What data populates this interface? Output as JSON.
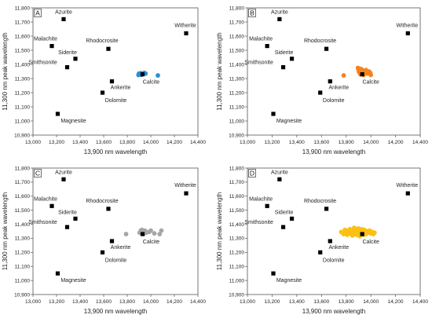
{
  "chart_data": [
    {
      "type": "scatter",
      "panel_label": "A",
      "xlabel": "13,900 nm wavelength",
      "ylabel": "11,300 nm peak wavelength",
      "xlim": [
        13000,
        14400
      ],
      "ylim": [
        10900,
        11800
      ],
      "x_ticks": [
        "13,000",
        "13,200",
        "13,400",
        "13,600",
        "13,800",
        "14,000",
        "14,200",
        "14,400"
      ],
      "y_ticks": [
        "10,900",
        "11,000",
        "11,100",
        "11,200",
        "11,300",
        "11,400",
        "11,500",
        "11,600",
        "11,700",
        "11,800"
      ],
      "grid": false,
      "reference_minerals": [
        {
          "label": "Azurite",
          "x": 13260,
          "y": 11720
        },
        {
          "label": "Malachite",
          "x": 13160,
          "y": 11530
        },
        {
          "label": "Rhodocrosite",
          "x": 13640,
          "y": 11510
        },
        {
          "label": "Siderite",
          "x": 13360,
          "y": 11440
        },
        {
          "label": "Smithsonite",
          "x": 13290,
          "y": 11380
        },
        {
          "label": "Witherite",
          "x": 14300,
          "y": 11620
        },
        {
          "label": "Ankerite",
          "x": 13670,
          "y": 11280
        },
        {
          "label": "Calcite",
          "x": 13930,
          "y": 11330
        },
        {
          "label": "Dolomite",
          "x": 13590,
          "y": 11200
        },
        {
          "label": "Magnesite",
          "x": 13210,
          "y": 11050
        }
      ],
      "sample_points": {
        "color": "#2e8fd0",
        "points": [
          [
            13895,
            11325
          ],
          [
            13900,
            11335
          ],
          [
            13910,
            11330
          ],
          [
            13915,
            11338
          ],
          [
            13920,
            11326
          ],
          [
            13925,
            11336
          ],
          [
            13935,
            11332
          ],
          [
            13945,
            11340
          ],
          [
            13955,
            11335
          ],
          [
            14060,
            11322
          ]
        ]
      }
    },
    {
      "type": "scatter",
      "panel_label": "B",
      "xlabel": "13,900 nm wavelength",
      "ylabel": "11,300 nm peak wavelength",
      "xlim": [
        13000,
        14400
      ],
      "ylim": [
        10900,
        11800
      ],
      "x_ticks": [
        "13,000",
        "13,200",
        "13,400",
        "13,600",
        "13,800",
        "14,000",
        "14,200",
        "14,400"
      ],
      "y_ticks": [
        "10,900",
        "11,000",
        "11,100",
        "11,200",
        "11,300",
        "11,400",
        "11,500",
        "11,600",
        "11,700",
        "11,800"
      ],
      "grid": false,
      "reference_minerals": [
        {
          "label": "Azurite",
          "x": 13260,
          "y": 11720
        },
        {
          "label": "Malachite",
          "x": 13160,
          "y": 11530
        },
        {
          "label": "Rhodocrosite",
          "x": 13640,
          "y": 11510
        },
        {
          "label": "Siderite",
          "x": 13360,
          "y": 11440
        },
        {
          "label": "Smithsonite",
          "x": 13290,
          "y": 11380
        },
        {
          "label": "Witherite",
          "x": 14300,
          "y": 11620
        },
        {
          "label": "Ankerite",
          "x": 13670,
          "y": 11280
        },
        {
          "label": "Calcite",
          "x": 13930,
          "y": 11330
        },
        {
          "label": "Dolomite",
          "x": 13590,
          "y": 11200
        },
        {
          "label": "Magnesite",
          "x": 13210,
          "y": 11050
        }
      ],
      "sample_points": {
        "color": "#f5821f",
        "points": [
          [
            13780,
            11322
          ],
          [
            13895,
            11375
          ],
          [
            13900,
            11360
          ],
          [
            13905,
            11345
          ],
          [
            13910,
            11370
          ],
          [
            13915,
            11330
          ],
          [
            13920,
            11350
          ],
          [
            13925,
            11365
          ],
          [
            13930,
            11340
          ],
          [
            13935,
            11355
          ],
          [
            13940,
            11325
          ],
          [
            13950,
            11345
          ],
          [
            13960,
            11360
          ],
          [
            13970,
            11335
          ],
          [
            13985,
            11350
          ],
          [
            13995,
            11340
          ],
          [
            14000,
            11325
          ]
        ]
      }
    },
    {
      "type": "scatter",
      "panel_label": "C",
      "xlabel": "13,900 nm wavelength",
      "ylabel": "11,300 nm peak wavelength",
      "xlim": [
        13000,
        14400
      ],
      "ylim": [
        10900,
        11800
      ],
      "x_ticks": [
        "13,000",
        "13,200",
        "13,400",
        "13,600",
        "13,800",
        "14,000",
        "14,200",
        "14,400"
      ],
      "y_ticks": [
        "10,900",
        "11,000",
        "11,100",
        "11,200",
        "11,300",
        "11,400",
        "11,500",
        "11,600",
        "11,700",
        "11,800"
      ],
      "grid": false,
      "reference_minerals": [
        {
          "label": "Azurite",
          "x": 13260,
          "y": 11720
        },
        {
          "label": "Malachite",
          "x": 13160,
          "y": 11530
        },
        {
          "label": "Rhodocrosite",
          "x": 13640,
          "y": 11510
        },
        {
          "label": "Siderite",
          "x": 13360,
          "y": 11440
        },
        {
          "label": "Smithsonite",
          "x": 13290,
          "y": 11380
        },
        {
          "label": "Witherite",
          "x": 14300,
          "y": 11620
        },
        {
          "label": "Ankerite",
          "x": 13670,
          "y": 11280
        },
        {
          "label": "Calcite",
          "x": 13930,
          "y": 11330
        },
        {
          "label": "Dolomite",
          "x": 13590,
          "y": 11200
        },
        {
          "label": "Magnesite",
          "x": 13210,
          "y": 11050
        }
      ],
      "sample_points": {
        "color": "#a6a6a6",
        "points": [
          [
            13790,
            11330
          ],
          [
            13905,
            11340
          ],
          [
            13915,
            11355
          ],
          [
            13925,
            11360
          ],
          [
            13935,
            11345
          ],
          [
            13945,
            11335
          ],
          [
            13950,
            11355
          ],
          [
            13960,
            11340
          ],
          [
            13985,
            11345
          ],
          [
            14000,
            11355
          ],
          [
            14030,
            11335
          ],
          [
            14075,
            11330
          ],
          [
            14090,
            11355
          ]
        ]
      }
    },
    {
      "type": "scatter",
      "panel_label": "D",
      "xlabel": "13,900 nm wavelength",
      "ylabel": "11,300 nm peak wavelength",
      "xlim": [
        13000,
        14400
      ],
      "ylim": [
        10900,
        11800
      ],
      "x_ticks": [
        "13,000",
        "13,200",
        "13,400",
        "13,600",
        "13,800",
        "14,000",
        "14,200",
        "14,400"
      ],
      "y_ticks": [
        "10,900",
        "11,000",
        "11,100",
        "11,200",
        "11,300",
        "11,400",
        "11,500",
        "11,600",
        "11,700",
        "11,800"
      ],
      "grid": false,
      "reference_minerals": [
        {
          "label": "Azurite",
          "x": 13260,
          "y": 11720
        },
        {
          "label": "Malachite",
          "x": 13160,
          "y": 11530
        },
        {
          "label": "Rhodocrosite",
          "x": 13640,
          "y": 11510
        },
        {
          "label": "Siderite",
          "x": 13360,
          "y": 11440
        },
        {
          "label": "Smithsonite",
          "x": 13290,
          "y": 11380
        },
        {
          "label": "Witherite",
          "x": 14300,
          "y": 11620
        },
        {
          "label": "Ankerite",
          "x": 13670,
          "y": 11280
        },
        {
          "label": "Calcite",
          "x": 13930,
          "y": 11330
        },
        {
          "label": "Dolomite",
          "x": 13590,
          "y": 11200
        },
        {
          "label": "Magnesite",
          "x": 13210,
          "y": 11050
        }
      ],
      "sample_points": {
        "color": "#fbc012",
        "points": [
          [
            13760,
            11345
          ],
          [
            13780,
            11330
          ],
          [
            13790,
            11360
          ],
          [
            13800,
            11340
          ],
          [
            13810,
            11325
          ],
          [
            13815,
            11355
          ],
          [
            13820,
            11345
          ],
          [
            13830,
            11365
          ],
          [
            13835,
            11335
          ],
          [
            13840,
            11350
          ],
          [
            13850,
            11320
          ],
          [
            13855,
            11360
          ],
          [
            13860,
            11340
          ],
          [
            13865,
            11375
          ],
          [
            13870,
            11330
          ],
          [
            13875,
            11355
          ],
          [
            13880,
            11345
          ],
          [
            13885,
            11365
          ],
          [
            13890,
            11325
          ],
          [
            13895,
            11350
          ],
          [
            13900,
            11370
          ],
          [
            13905,
            11340
          ],
          [
            13910,
            11315
          ],
          [
            13915,
            11355
          ],
          [
            13920,
            11335
          ],
          [
            13925,
            11365
          ],
          [
            13930,
            11345
          ],
          [
            13940,
            11325
          ],
          [
            13945,
            11360
          ],
          [
            13950,
            11340
          ],
          [
            13955,
            11355
          ],
          [
            13960,
            11330
          ],
          [
            13970,
            11350
          ],
          [
            13980,
            11340
          ],
          [
            13990,
            11355
          ],
          [
            14000,
            11335
          ],
          [
            14010,
            11345
          ],
          [
            14020,
            11330
          ],
          [
            14030,
            11340
          ]
        ]
      }
    }
  ]
}
